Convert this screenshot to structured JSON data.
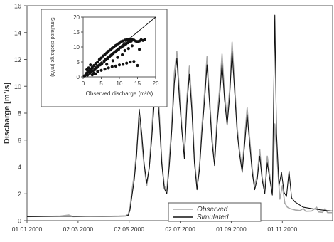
{
  "chart_data": [
    {
      "type": "line",
      "ylabel": "Discharge [m³/s]",
      "ylim": [
        0,
        16
      ],
      "yticks": [
        0,
        2,
        4,
        6,
        8,
        10,
        12,
        14,
        16
      ],
      "x_tick_labels": [
        "01.01.2000",
        "02.03.2000",
        "02.05.2000",
        "02.07.2000",
        "01.09.2000",
        "01.11.2000"
      ],
      "x_tick_days": [
        0,
        61,
        122,
        183,
        244,
        305
      ],
      "x_end_day": 365,
      "series_style": "daily discharge hydrograph, observed (light grey) vs simulated (black)",
      "series": [
        {
          "name": "Observed",
          "color": "#a8a8a8",
          "points": [
            [
              0,
              0.3
            ],
            [
              20,
              0.32
            ],
            [
              40,
              0.34
            ],
            [
              50,
              0.42
            ],
            [
              55,
              0.3
            ],
            [
              70,
              0.33
            ],
            [
              90,
              0.32
            ],
            [
              110,
              0.34
            ],
            [
              118,
              0.36
            ],
            [
              121,
              0.5
            ],
            [
              123,
              1.0
            ],
            [
              125,
              2.1
            ],
            [
              128,
              3.4
            ],
            [
              131,
              5.3
            ],
            [
              134,
              7.6
            ],
            [
              137,
              6.0
            ],
            [
              140,
              4.0
            ],
            [
              143,
              2.6
            ],
            [
              146,
              4.0
            ],
            [
              149,
              6.8
            ],
            [
              152,
              9.4
            ],
            [
              155,
              11.3
            ],
            [
              158,
              8.1
            ],
            [
              161,
              4.4
            ],
            [
              164,
              2.6
            ],
            [
              167,
              2.2
            ],
            [
              170,
              4.6
            ],
            [
              173,
              7.3
            ],
            [
              176,
              11.0
            ],
            [
              179,
              12.6
            ],
            [
              182,
              9.7
            ],
            [
              185,
              7.0
            ],
            [
              188,
              4.9
            ],
            [
              191,
              9.1
            ],
            [
              194,
              11.5
            ],
            [
              197,
              8.6
            ],
            [
              200,
              4.6
            ],
            [
              203,
              2.6
            ],
            [
              206,
              4.1
            ],
            [
              209,
              7.1
            ],
            [
              212,
              9.5
            ],
            [
              215,
              12.2
            ],
            [
              218,
              9.2
            ],
            [
              221,
              6.2
            ],
            [
              224,
              4.4
            ],
            [
              227,
              7.6
            ],
            [
              230,
              9.8
            ],
            [
              233,
              12.4
            ],
            [
              236,
              9.5
            ],
            [
              239,
              7.6
            ],
            [
              242,
              9.7
            ],
            [
              245,
              13.3
            ],
            [
              248,
              10.1
            ],
            [
              251,
              7.0
            ],
            [
              254,
              5.2
            ],
            [
              257,
              3.9
            ],
            [
              260,
              6.2
            ],
            [
              263,
              8.4
            ],
            [
              266,
              6.1
            ],
            [
              269,
              3.9
            ],
            [
              272,
              2.6
            ],
            [
              275,
              3.4
            ],
            [
              278,
              5.3
            ],
            [
              281,
              3.2
            ],
            [
              284,
              2.2
            ],
            [
              287,
              4.8
            ],
            [
              290,
              3.4
            ],
            [
              293,
              2.1
            ],
            [
              296,
              7.2
            ],
            [
              299,
              4.4
            ],
            [
              302,
              1.6
            ],
            [
              305,
              2.6
            ],
            [
              308,
              1.3
            ],
            [
              311,
              1.0
            ],
            [
              314,
              0.9
            ],
            [
              320,
              0.8
            ],
            [
              326,
              0.75
            ],
            [
              330,
              0.9
            ],
            [
              333,
              0.7
            ],
            [
              340,
              0.72
            ],
            [
              346,
              1.0
            ],
            [
              348,
              0.65
            ],
            [
              353,
              0.62
            ],
            [
              356,
              0.9
            ],
            [
              359,
              0.6
            ],
            [
              365,
              0.6
            ]
          ]
        },
        {
          "name": "Simulated",
          "color": "#111111",
          "points": [
            [
              0,
              0.3
            ],
            [
              20,
              0.31
            ],
            [
              40,
              0.32
            ],
            [
              60,
              0.32
            ],
            [
              80,
              0.33
            ],
            [
              100,
              0.33
            ],
            [
              118,
              0.34
            ],
            [
              121,
              0.4
            ],
            [
              123,
              0.8
            ],
            [
              125,
              1.7
            ],
            [
              128,
              3.0
            ],
            [
              131,
              4.9
            ],
            [
              134,
              8.3
            ],
            [
              137,
              6.5
            ],
            [
              140,
              4.2
            ],
            [
              143,
              2.8
            ],
            [
              146,
              3.9
            ],
            [
              149,
              6.1
            ],
            [
              152,
              8.8
            ],
            [
              155,
              10.1
            ],
            [
              158,
              7.6
            ],
            [
              161,
              4.2
            ],
            [
              164,
              2.4
            ],
            [
              167,
              2.0
            ],
            [
              170,
              4.1
            ],
            [
              173,
              6.8
            ],
            [
              176,
              10.2
            ],
            [
              179,
              12.1
            ],
            [
              182,
              9.1
            ],
            [
              185,
              6.7
            ],
            [
              188,
              4.6
            ],
            [
              191,
              8.6
            ],
            [
              194,
              10.9
            ],
            [
              197,
              8.1
            ],
            [
              200,
              4.3
            ],
            [
              203,
              2.3
            ],
            [
              206,
              3.8
            ],
            [
              209,
              6.6
            ],
            [
              212,
              8.9
            ],
            [
              215,
              11.6
            ],
            [
              218,
              8.8
            ],
            [
              221,
              5.8
            ],
            [
              224,
              4.1
            ],
            [
              227,
              7.1
            ],
            [
              230,
              9.2
            ],
            [
              233,
              11.7
            ],
            [
              236,
              9.0
            ],
            [
              239,
              7.1
            ],
            [
              242,
              9.2
            ],
            [
              245,
              12.6
            ],
            [
              248,
              9.6
            ],
            [
              251,
              6.6
            ],
            [
              254,
              4.9
            ],
            [
              257,
              3.6
            ],
            [
              260,
              5.7
            ],
            [
              263,
              7.9
            ],
            [
              266,
              5.7
            ],
            [
              269,
              3.6
            ],
            [
              272,
              2.3
            ],
            [
              275,
              3.1
            ],
            [
              278,
              4.8
            ],
            [
              281,
              3.0
            ],
            [
              284,
              2.0
            ],
            [
              287,
              4.3
            ],
            [
              290,
              3.1
            ],
            [
              293,
              1.9
            ],
            [
              296,
              15.3
            ],
            [
              298,
              6.5
            ],
            [
              301,
              2.6
            ],
            [
              304,
              3.6
            ],
            [
              307,
              2.1
            ],
            [
              310,
              1.8
            ],
            [
              313,
              3.7
            ],
            [
              316,
              1.7
            ],
            [
              320,
              1.4
            ],
            [
              325,
              1.2
            ],
            [
              330,
              1.0
            ],
            [
              335,
              0.95
            ],
            [
              340,
              0.9
            ],
            [
              346,
              0.85
            ],
            [
              352,
              0.8
            ],
            [
              358,
              0.75
            ],
            [
              365,
              0.72
            ]
          ]
        }
      ]
    },
    {
      "type": "scatter",
      "xlabel": "Observed discharge (m³/s)",
      "ylabel": "Simulated discharge (m³/s)",
      "xlim": [
        0,
        20
      ],
      "ylim": [
        0,
        20
      ],
      "xticks": [
        0,
        5,
        10,
        15,
        20
      ],
      "yticks": [
        0,
        5,
        10,
        15,
        20
      ],
      "reference_line": "1:1",
      "points_color": "#111111",
      "points": [
        [
          0.3,
          0.3
        ],
        [
          0.5,
          0.4
        ],
        [
          0.8,
          0.9
        ],
        [
          1.0,
          1.3
        ],
        [
          1.2,
          0.6
        ],
        [
          1.5,
          2.0
        ],
        [
          1.8,
          1.2
        ],
        [
          2.0,
          2.6
        ],
        [
          2.2,
          1.8
        ],
        [
          2.5,
          3.2
        ],
        [
          2.7,
          2.0
        ],
        [
          3.0,
          3.8
        ],
        [
          3.2,
          2.4
        ],
        [
          3.5,
          4.5
        ],
        [
          3.7,
          3.0
        ],
        [
          4.0,
          5.0
        ],
        [
          4.2,
          3.6
        ],
        [
          4.5,
          5.8
        ],
        [
          4.7,
          4.0
        ],
        [
          5.0,
          6.3
        ],
        [
          5.2,
          4.5
        ],
        [
          5.5,
          7.0
        ],
        [
          5.8,
          5.2
        ],
        [
          6.0,
          7.5
        ],
        [
          6.2,
          5.8
        ],
        [
          6.5,
          8.0
        ],
        [
          6.8,
          6.2
        ],
        [
          7.0,
          8.6
        ],
        [
          7.3,
          6.8
        ],
        [
          7.5,
          9.0
        ],
        [
          7.8,
          7.2
        ],
        [
          8.0,
          9.6
        ],
        [
          8.3,
          7.8
        ],
        [
          8.5,
          10.0
        ],
        [
          8.8,
          8.3
        ],
        [
          9.0,
          10.5
        ],
        [
          9.3,
          8.8
        ],
        [
          9.5,
          11.0
        ],
        [
          9.8,
          9.2
        ],
        [
          10.0,
          11.3
        ],
        [
          10.3,
          9.8
        ],
        [
          10.5,
          11.8
        ],
        [
          10.8,
          10.2
        ],
        [
          11.0,
          12.0
        ],
        [
          11.3,
          10.6
        ],
        [
          11.5,
          12.3
        ],
        [
          11.8,
          11.0
        ],
        [
          12.0,
          12.5
        ],
        [
          12.3,
          11.4
        ],
        [
          12.5,
          12.6
        ],
        [
          12.8,
          11.8
        ],
        [
          13.0,
          12.7
        ],
        [
          13.3,
          12.0
        ],
        [
          13.5,
          12.5
        ],
        [
          14.0,
          12.3
        ],
        [
          14.5,
          12.0
        ],
        [
          15.0,
          11.8
        ],
        [
          15.5,
          12.0
        ],
        [
          16.0,
          12.4
        ],
        [
          16.5,
          12.2
        ],
        [
          17.0,
          12.5
        ],
        [
          3.0,
          1.2
        ],
        [
          4.0,
          1.8
        ],
        [
          5.0,
          2.2
        ],
        [
          6.0,
          2.6
        ],
        [
          7.0,
          3.0
        ],
        [
          8.0,
          3.4
        ],
        [
          9.0,
          3.6
        ],
        [
          10.0,
          4.0
        ],
        [
          11.0,
          4.2
        ],
        [
          12.0,
          4.6
        ],
        [
          13.0,
          5.0
        ],
        [
          14.0,
          5.2
        ],
        [
          15.0,
          3.8
        ],
        [
          2.5,
          0.7
        ],
        [
          3.5,
          1.0
        ],
        [
          1.0,
          2.4
        ],
        [
          1.5,
          3.0
        ],
        [
          2.0,
          4.0
        ],
        [
          6.5,
          4.2
        ],
        [
          9.5,
          6.5
        ],
        [
          11.5,
          8.8
        ],
        [
          12.5,
          9.5
        ],
        [
          13.5,
          10.4
        ],
        [
          15.5,
          9.2
        ],
        [
          8.2,
          5.4
        ],
        [
          10.8,
          7.4
        ]
      ]
    }
  ],
  "legend": {
    "observed_label": "Observed",
    "simulated_label": "Simulated"
  }
}
